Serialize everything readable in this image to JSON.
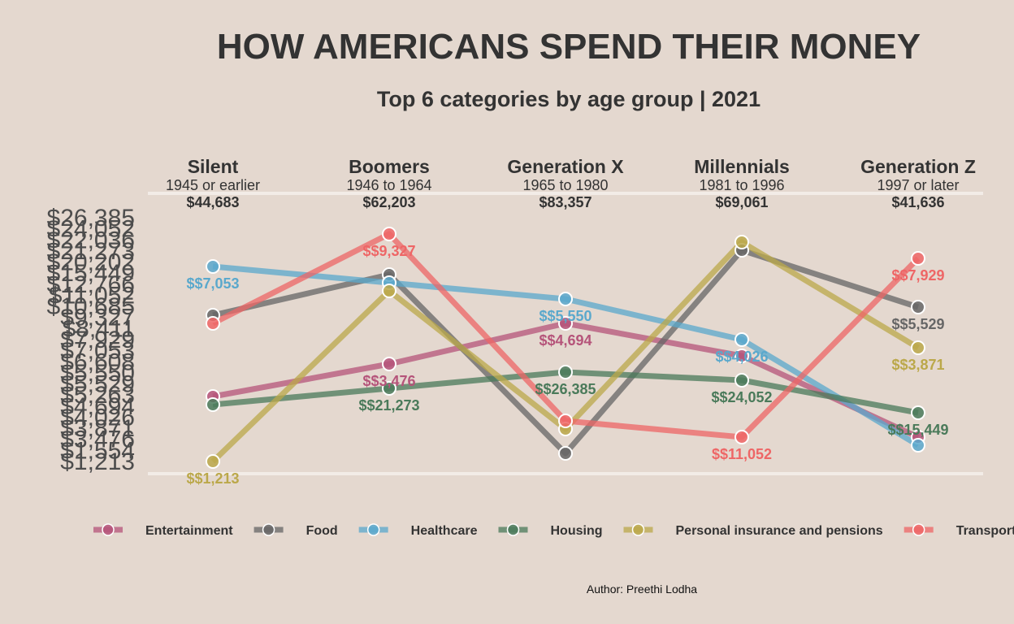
{
  "title": "HOW AMERICANS SPEND THEIR MONEY",
  "subtitle": "Top 6 categories by age group | 2021",
  "caption": "Author: Preethi Lodha",
  "chart_data": {
    "type": "line",
    "title": "HOW AMERICANS SPEND THEIR MONEY",
    "subtitle": "Top 6 categories by age group | 2021",
    "x": [
      "Silent",
      "Boomers",
      "Generation X",
      "Millennials",
      "Generation Z"
    ],
    "generations": [
      {
        "name": "Silent",
        "range": "1945 or earlier",
        "income": "$44,683"
      },
      {
        "name": "Boomers",
        "range": "1946 to 1964",
        "income": "$62,203"
      },
      {
        "name": "Generation X",
        "range": "1965 to 1980",
        "income": "$83,357"
      },
      {
        "name": "Millennials",
        "range": "1981 to 1996",
        "income": "$69,061"
      },
      {
        "name": "Generation Z",
        "range": "1997 or later",
        "income": "$41,636"
      }
    ],
    "series": [
      {
        "name": "Entertainment",
        "color": "#b5547a",
        "labeled": [
          false,
          true,
          true,
          false,
          false
        ],
        "labels": [
          "",
          "$$3,476",
          "$$4,694",
          "",
          ""
        ],
        "ranks": [
          8,
          12,
          17,
          13,
          3
        ]
      },
      {
        "name": "Food",
        "color": "#666666",
        "labeled": [
          false,
          false,
          false,
          false,
          true
        ],
        "labels": [
          "",
          "",
          "",
          "",
          "$$5,529"
        ],
        "ranks": [
          18,
          23,
          1,
          26,
          19
        ]
      },
      {
        "name": "Healthcare",
        "color": "#5aa8cc",
        "labeled": [
          true,
          false,
          true,
          true,
          false
        ],
        "labels": [
          "$$7,053",
          "",
          "$$5,550",
          "$$4,026",
          ""
        ],
        "ranks": [
          24,
          22,
          20,
          15,
          2
        ]
      },
      {
        "name": "Housing",
        "color": "#4a7a5a",
        "labeled": [
          false,
          true,
          true,
          true,
          true
        ],
        "labels": [
          "",
          "$$21,273",
          "$$26,385",
          "$$24,052",
          "$$15,449"
        ],
        "ranks": [
          7,
          9,
          11,
          10,
          6
        ]
      },
      {
        "name": "Personal insurance and pensions",
        "color": "#bba84a",
        "labeled": [
          true,
          false,
          false,
          false,
          true
        ],
        "labels": [
          "$$1,213",
          "",
          "",
          "",
          "$$3,871"
        ],
        "ranks": [
          0,
          21,
          4,
          27,
          14
        ]
      },
      {
        "name": "Transportation",
        "color": "#ee6666",
        "labeled": [
          false,
          true,
          false,
          true,
          true
        ],
        "labels": [
          "",
          "$$9,327",
          "",
          "$$11,052",
          "$$7,929"
        ],
        "ranks": [
          17,
          28,
          5,
          3,
          25
        ]
      }
    ],
    "y_tick_labels": [
      "$1,213",
      "$1,554",
      "$3,476",
      "$3,871",
      "$4,026",
      "$4,694",
      "$5,263",
      "$5,529",
      "$5,550",
      "$6,608",
      "$7,053",
      "$7,929",
      "$8,411",
      "$9,327",
      "$10,685",
      "$11,052",
      "$12,766",
      "$15,449",
      "$20,202",
      "$21,273",
      "$22,036",
      "$24,052",
      "$26,385"
    ],
    "legend_position": "bottom",
    "grid": false
  }
}
